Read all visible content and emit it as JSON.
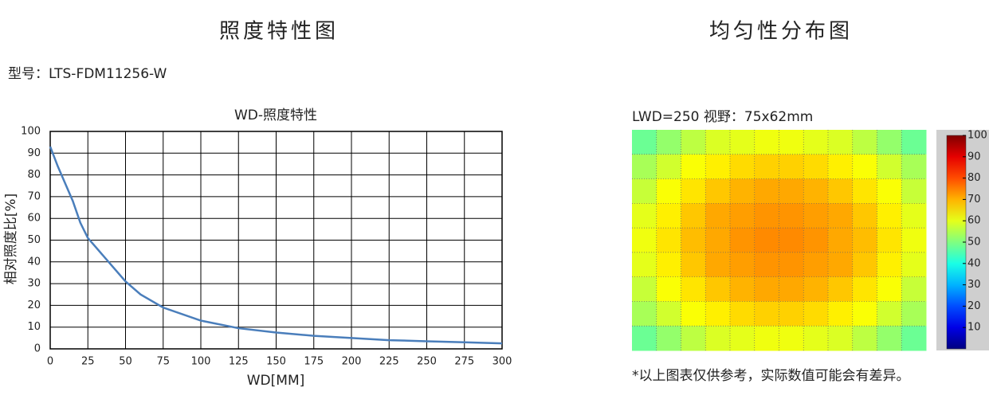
{
  "section_titles": [
    "照度特性图",
    "均匀性分布图"
  ],
  "model": "型号：LTS-FDM11256-W",
  "note": "*以上图表仅供参考，实际数值可能会有差异。",
  "chart_data": [
    {
      "type": "line",
      "title": "WD-照度特性",
      "xlabel": "WD[MM]",
      "ylabel": "相对照度比[%]",
      "x": [
        0,
        5,
        10,
        15,
        20,
        25,
        30,
        40,
        50,
        60,
        75,
        100,
        125,
        150,
        175,
        200,
        225,
        250,
        275,
        300
      ],
      "values": [
        93,
        84,
        76,
        68,
        58,
        51,
        47,
        39,
        31,
        25,
        19,
        13,
        9.5,
        7.5,
        6,
        5,
        4,
        3.5,
        3,
        2.5
      ],
      "color": "#4a7ebb",
      "xlim": [
        0,
        300
      ],
      "xticks": [
        0,
        25,
        50,
        75,
        100,
        125,
        150,
        175,
        200,
        225,
        250,
        275,
        300
      ],
      "ylim": [
        0,
        100
      ],
      "yticks": [
        0,
        10,
        20,
        30,
        40,
        50,
        60,
        70,
        80,
        90,
        100
      ],
      "grid": true
    },
    {
      "type": "heatmap",
      "title": "LWD=250  视野：75x62mm",
      "colormap": "jet",
      "clim": [
        0,
        100
      ],
      "cticks": [
        10,
        20,
        30,
        40,
        50,
        60,
        70,
        80,
        90,
        100
      ],
      "grid": true,
      "z": [
        [
          48,
          52,
          56,
          59,
          60,
          61,
          61,
          60,
          59,
          56,
          52,
          48
        ],
        [
          54,
          58,
          62,
          64,
          66,
          67,
          67,
          66,
          64,
          62,
          58,
          54
        ],
        [
          57,
          62,
          65,
          68,
          70,
          71,
          71,
          70,
          68,
          65,
          62,
          57
        ],
        [
          60,
          64,
          68,
          71,
          72,
          73,
          73,
          72,
          71,
          68,
          64,
          60
        ],
        [
          61,
          65,
          69,
          71,
          73,
          74,
          74,
          73,
          71,
          69,
          65,
          61
        ],
        [
          60,
          64,
          68,
          71,
          72,
          73,
          73,
          72,
          71,
          68,
          64,
          60
        ],
        [
          57,
          62,
          65,
          68,
          70,
          71,
          71,
          70,
          68,
          65,
          62,
          57
        ],
        [
          54,
          58,
          62,
          64,
          66,
          67,
          67,
          66,
          64,
          62,
          58,
          54
        ],
        [
          48,
          52,
          56,
          59,
          60,
          61,
          61,
          60,
          59,
          56,
          52,
          48
        ]
      ]
    }
  ]
}
